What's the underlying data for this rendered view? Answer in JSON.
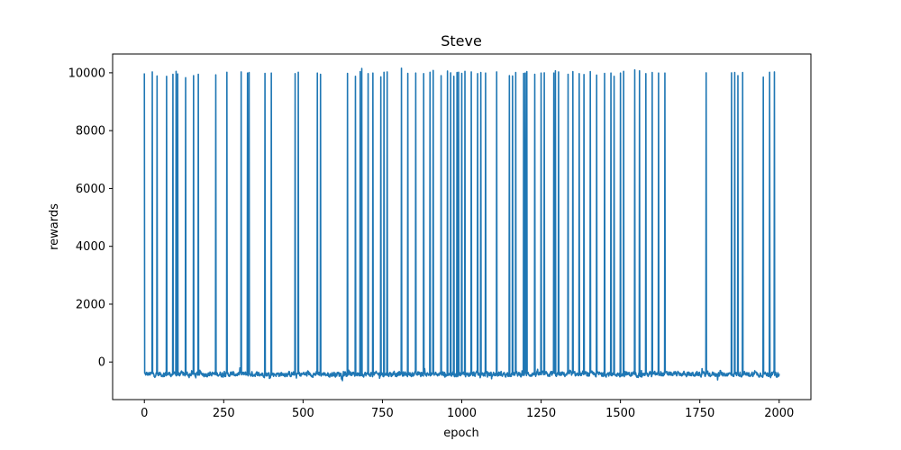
{
  "chart_data": {
    "type": "line",
    "title": "Steve",
    "xlabel": "epoch",
    "ylabel": "rewards",
    "xlim": [
      -100,
      2100
    ],
    "ylim": [
      -1300,
      10650
    ],
    "xticks": [
      0,
      250,
      500,
      750,
      1000,
      1250,
      1500,
      1750,
      2000
    ],
    "yticks": [
      0,
      2000,
      4000,
      6000,
      8000,
      10000
    ],
    "grid": false,
    "legend": "none",
    "baseline_range": [
      -900,
      -100
    ],
    "series": [
      {
        "color": "#1f77b4",
        "x_range": [
          0,
          2000
        ],
        "spike_epochs": [
          0,
          25,
          40,
          70,
          90,
          100,
          105,
          130,
          155,
          170,
          225,
          260,
          305,
          325,
          330,
          380,
          400,
          475,
          485,
          545,
          555,
          640,
          665,
          680,
          685,
          705,
          720,
          745,
          755,
          765,
          810,
          830,
          855,
          880,
          900,
          910,
          935,
          955,
          965,
          975,
          985,
          990,
          1000,
          1010,
          1030,
          1050,
          1060,
          1075,
          1110,
          1150,
          1160,
          1170,
          1195,
          1200,
          1205,
          1230,
          1250,
          1260,
          1290,
          1295,
          1305,
          1335,
          1350,
          1370,
          1385,
          1405,
          1425,
          1450,
          1470,
          1480,
          1500,
          1510,
          1545,
          1560,
          1580,
          1600,
          1620,
          1640,
          1770,
          1850,
          1860,
          1870,
          1885,
          1950,
          1970,
          1985
        ],
        "spike_values": [
          9980,
          10030,
          9890,
          9880,
          9950,
          10050,
          9960,
          9830,
          9900,
          9950,
          9930,
          10020,
          10030,
          9990,
          10010,
          9980,
          9990,
          9970,
          10020,
          9990,
          9950,
          9980,
          9880,
          10040,
          10150,
          9970,
          9990,
          9860,
          10020,
          10030,
          10160,
          9980,
          9990,
          9970,
          10020,
          10080,
          9900,
          10060,
          10000,
          9880,
          10010,
          10020,
          9980,
          10050,
          10030,
          9970,
          10010,
          9990,
          10030,
          9900,
          9890,
          10010,
          9980,
          9990,
          10040,
          9950,
          9990,
          10000,
          9990,
          10070,
          10030,
          9950,
          10040,
          9970,
          9940,
          10040,
          9920,
          9980,
          9990,
          9880,
          9990,
          10050,
          10100,
          10070,
          9970,
          10010,
          9990,
          9990,
          10000,
          10000,
          10010,
          9900,
          10010,
          9850,
          10020,
          10030
        ]
      }
    ]
  }
}
